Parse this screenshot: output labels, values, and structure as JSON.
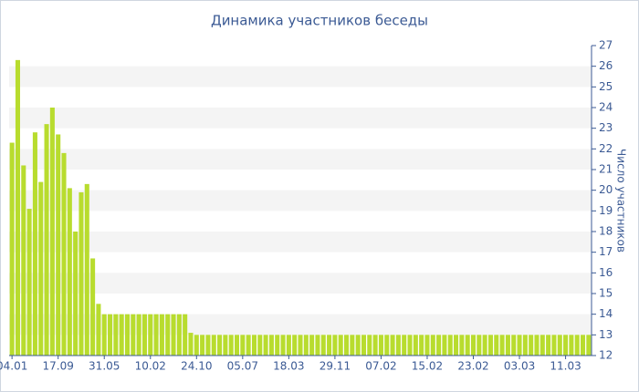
{
  "chart_data": {
    "type": "bar",
    "title": "Динамика участников беседы",
    "y_label": "Число участников",
    "categories": [
      "04.01",
      null,
      null,
      null,
      null,
      null,
      null,
      null,
      "17.09",
      null,
      null,
      null,
      null,
      null,
      null,
      null,
      "31.05",
      null,
      null,
      null,
      null,
      null,
      null,
      null,
      "10.02",
      null,
      null,
      null,
      null,
      null,
      null,
      null,
      "24.10",
      null,
      null,
      null,
      null,
      null,
      null,
      null,
      "05.07",
      null,
      null,
      null,
      null,
      null,
      null,
      null,
      "18.03",
      null,
      null,
      null,
      null,
      null,
      null,
      null,
      "29.11",
      null,
      null,
      null,
      null,
      null,
      null,
      null,
      "07.02",
      null,
      null,
      null,
      null,
      null,
      null,
      null,
      "15.02",
      null,
      null,
      null,
      null,
      null,
      null,
      null,
      "23.02",
      null,
      null,
      null,
      null,
      null,
      null,
      null,
      "03.03",
      null,
      null,
      null,
      null,
      null,
      null,
      null,
      "11.03",
      null,
      null,
      null,
      null
    ],
    "values": [
      22.3,
      26.3,
      21.2,
      19.1,
      22.8,
      20.4,
      23.2,
      24,
      22.7,
      21.8,
      20.1,
      18,
      19.9,
      20.3,
      16.7,
      14.5,
      14,
      14,
      14,
      14,
      14,
      14,
      14,
      14,
      14,
      14,
      14,
      14,
      14,
      14,
      14,
      13.1,
      13,
      13,
      13,
      13,
      13,
      13,
      13,
      13,
      13,
      13,
      13,
      13,
      13,
      13,
      13,
      13,
      13,
      13,
      13,
      13,
      13,
      13,
      13,
      13,
      13,
      13,
      13,
      13,
      13,
      13,
      13,
      13,
      13,
      13,
      13,
      13,
      13,
      13,
      13,
      13,
      13,
      13,
      13,
      13,
      13,
      13,
      13,
      13,
      13,
      13,
      13,
      13,
      13,
      13,
      13,
      13,
      13,
      13,
      13,
      13,
      13,
      13,
      13,
      13,
      13,
      13,
      13,
      13,
      13
    ],
    "color": "#b8dc2e",
    "ylim": [
      12,
      27
    ],
    "yticks": [
      12,
      13,
      14,
      15,
      16,
      17,
      18,
      19,
      20,
      21,
      22,
      23,
      24,
      25,
      26,
      27
    ],
    "grid": true
  }
}
